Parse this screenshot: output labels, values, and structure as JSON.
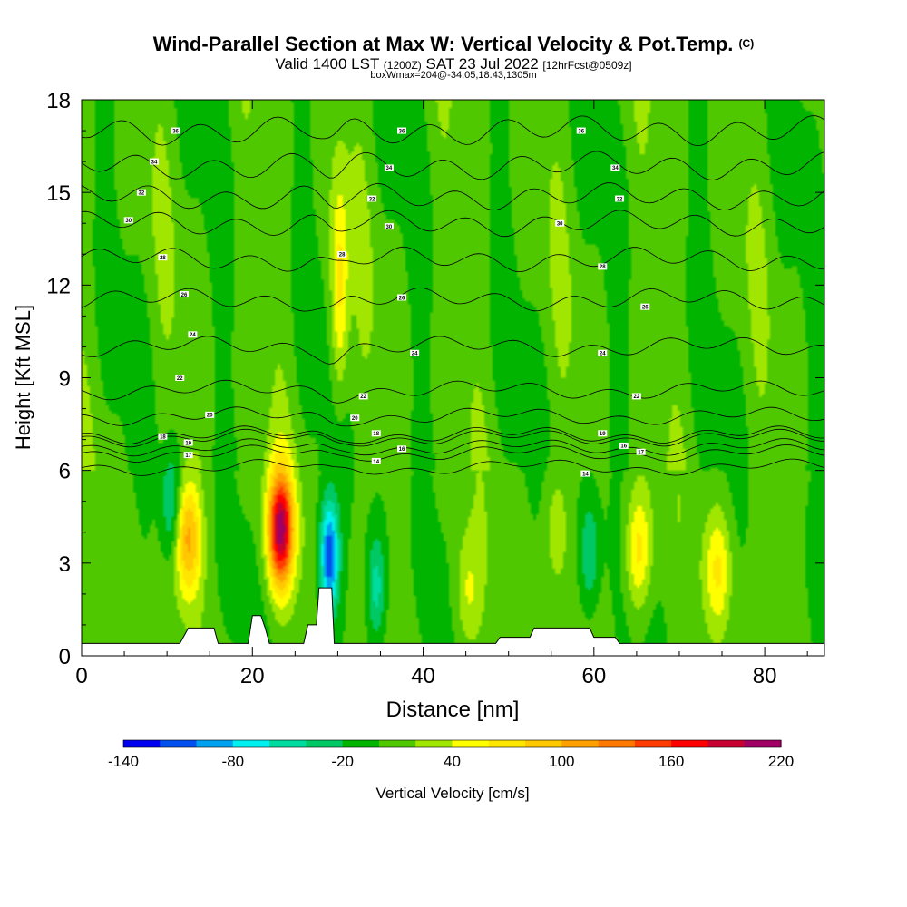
{
  "header": {
    "title": "Wind-Parallel Section at Max W: Vertical Velocity & Pot.Temp.",
    "copyright": "(C)",
    "valid_prefix": "Valid 1400 LST",
    "valid_utc": "(1200Z)",
    "valid_date": "SAT 23 Jul 2022",
    "forecast": "[12hrFcst@0509z]",
    "box_info": "boxWmax=204@-34.05,18.43,1305m"
  },
  "chart_data": {
    "type": "heatmap",
    "xlabel": "Distance [nm]",
    "ylabel": "Height [Kft MSL]",
    "xlim": [
      0,
      87
    ],
    "ylim": [
      0,
      18
    ],
    "xticks": [
      "0",
      "20",
      "40",
      "60",
      "80"
    ],
    "yticks": [
      "0",
      "3",
      "6",
      "9",
      "12",
      "15",
      "18"
    ],
    "colorbar": {
      "label": "Vertical Velocity [cm/s]",
      "min": -140,
      "max": 220,
      "step": 20,
      "tick_labels": [
        "-140",
        "-80",
        "-20",
        "40",
        "100",
        "160",
        "220"
      ],
      "colors": [
        "#0000f0",
        "#0050f0",
        "#00a0f0",
        "#00f0f0",
        "#00dca0",
        "#00c864",
        "#00b400",
        "#50c800",
        "#a0e600",
        "#ffff00",
        "#ffe600",
        "#ffc800",
        "#ffa000",
        "#ff7800",
        "#ff3c00",
        "#ff0000",
        "#c80032",
        "#a00064"
      ]
    },
    "updrafts": [
      {
        "x": 23.3,
        "z": 4.1,
        "w": 204
      },
      {
        "x": 30.2,
        "z": 11.8,
        "w": 70
      },
      {
        "x": 12.5,
        "z": 3.8,
        "w": 105
      },
      {
        "x": 65.2,
        "z": 3.4,
        "w": 70
      },
      {
        "x": 74.5,
        "z": 2.8,
        "w": 60
      },
      {
        "x": 45.2,
        "z": 2.0,
        "w": 45
      },
      {
        "x": 55.5,
        "z": 4.2,
        "w": 30
      }
    ],
    "downdrafts": [
      {
        "x": 29.0,
        "z": 3.2,
        "w": -130
      },
      {
        "x": 10.5,
        "z": 5.0,
        "w": -55
      },
      {
        "x": 34.5,
        "z": 2.2,
        "w": -60
      },
      {
        "x": 59.5,
        "z": 3.3,
        "w": -50
      }
    ],
    "terrain": [
      [
        0,
        0.4
      ],
      [
        11.5,
        0.4
      ],
      [
        12.5,
        0.9
      ],
      [
        15.5,
        0.9
      ],
      [
        16,
        0.4
      ],
      [
        19.5,
        0.4
      ],
      [
        20,
        1.3
      ],
      [
        21,
        1.3
      ],
      [
        21.5,
        0.9
      ],
      [
        22,
        0.4
      ],
      [
        26,
        0.4
      ],
      [
        26.5,
        1.0
      ],
      [
        27.5,
        1.0
      ],
      [
        27.8,
        2.2
      ],
      [
        29.3,
        2.2
      ],
      [
        29.6,
        0.4
      ],
      [
        48.5,
        0.4
      ],
      [
        49,
        0.6
      ],
      [
        52.5,
        0.6
      ],
      [
        53,
        0.9
      ],
      [
        59.5,
        0.9
      ],
      [
        60,
        0.6
      ],
      [
        62.5,
        0.6
      ],
      [
        63,
        0.4
      ],
      [
        87,
        0.4
      ]
    ],
    "theta_isentropes": {
      "label_unit": "C",
      "levels": [
        {
          "v": "14",
          "lab": [
            [
              34.5,
              6.3
            ],
            [
              59,
              5.9
            ]
          ]
        },
        {
          "v": "16",
          "lab": [
            [
              37.5,
              6.7
            ],
            [
              63.5,
              6.8
            ]
          ]
        },
        {
          "v": "17",
          "lab": [
            [
              12.5,
              6.5
            ],
            [
              65.5,
              6.6
            ]
          ]
        },
        {
          "v": "18",
          "lab": [
            [
              9.5,
              7.1
            ],
            [
              34.5,
              7.2
            ]
          ]
        },
        {
          "v": "19",
          "lab": [
            [
              12.5,
              6.9
            ],
            [
              61,
              7.2
            ]
          ]
        },
        {
          "v": "20",
          "lab": [
            [
              15,
              7.8
            ],
            [
              32,
              7.7
            ]
          ]
        },
        {
          "v": "22",
          "lab": [
            [
              11.5,
              9.0
            ],
            [
              33,
              8.4
            ],
            [
              65,
              8.4
            ]
          ]
        },
        {
          "v": "24",
          "lab": [
            [
              13,
              10.4
            ],
            [
              39,
              9.8
            ],
            [
              61,
              9.8
            ]
          ]
        },
        {
          "v": "26",
          "lab": [
            [
              12,
              11.7
            ],
            [
              37.5,
              11.6
            ],
            [
              66,
              11.3
            ]
          ]
        },
        {
          "v": "28",
          "lab": [
            [
              9.5,
              12.9
            ],
            [
              30.5,
              13.0
            ],
            [
              61,
              12.6
            ]
          ]
        },
        {
          "v": "30",
          "lab": [
            [
              5.5,
              14.1
            ],
            [
              36,
              13.9
            ],
            [
              56,
              14.0
            ]
          ]
        },
        {
          "v": "32",
          "lab": [
            [
              7,
              15.0
            ],
            [
              34,
              14.8
            ],
            [
              63,
              14.8
            ]
          ]
        },
        {
          "v": "34",
          "lab": [
            [
              8.5,
              16.0
            ],
            [
              36,
              15.8
            ],
            [
              62.5,
              15.8
            ]
          ]
        },
        {
          "v": "36",
          "lab": [
            [
              11,
              17.0
            ],
            [
              37.5,
              17.0
            ],
            [
              58.5,
              17.0
            ]
          ]
        }
      ]
    }
  }
}
